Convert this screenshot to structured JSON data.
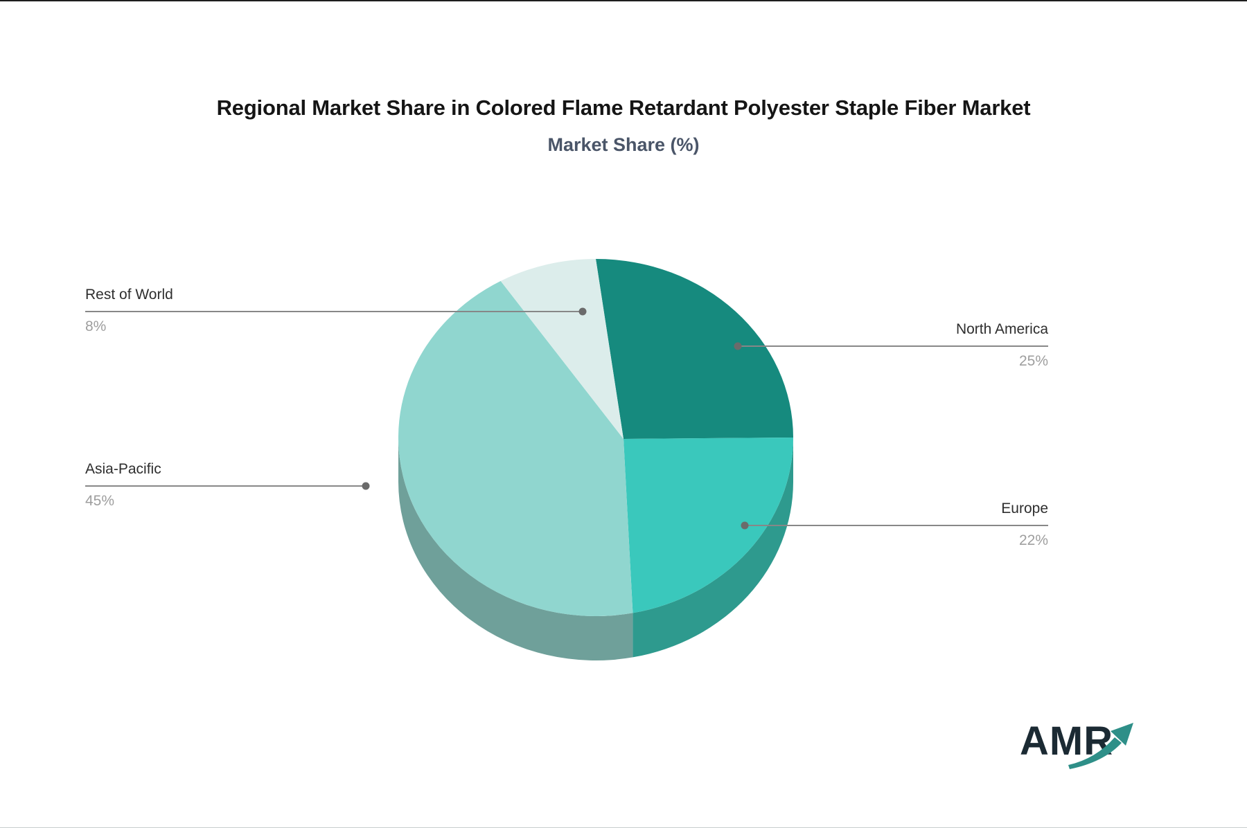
{
  "header": {
    "title": "Regional Market Share in Colored Flame Retardant Polyester Staple Fiber Market",
    "subtitle": "Market Share (%)"
  },
  "chart_data": {
    "type": "pie",
    "style": "3d",
    "title": "Regional Market Share in Colored Flame Retardant Polyester Staple Fiber Market",
    "subtitle": "Market Share (%)",
    "unit": "%",
    "direction": "clockwise",
    "start_angle_deg": 0,
    "legend_position": "none",
    "label_style": "leader-lines",
    "slices": [
      {
        "label": "North America",
        "value": 25,
        "pct_label": "25%",
        "color": "#168a7e",
        "side_color": "#0f7468"
      },
      {
        "label": "Europe",
        "value": 22,
        "pct_label": "22%",
        "color": "#3ac8bc",
        "side_color": "#2e9a8e"
      },
      {
        "label": "Asia-Pacific",
        "value": 45,
        "pct_label": "45%",
        "color": "#90d6cf",
        "side_color": "#6fa09a"
      },
      {
        "label": "Rest of World",
        "value": 8,
        "pct_label": "8%",
        "color": "#dcedeb",
        "side_color": "#b9d6d2"
      }
    ]
  },
  "logo": {
    "text": "AMR",
    "text_color": "#1b2a33",
    "arrow_color": "#2e8f88"
  },
  "colors": {
    "leader_line": "#878787",
    "leader_dot": "#6b6b6b",
    "title_text": "#151515",
    "subtitle_text": "#4a5568",
    "label_text": "#2e2e2e",
    "pct_text": "#9e9e9e",
    "background": "#ffffff"
  }
}
